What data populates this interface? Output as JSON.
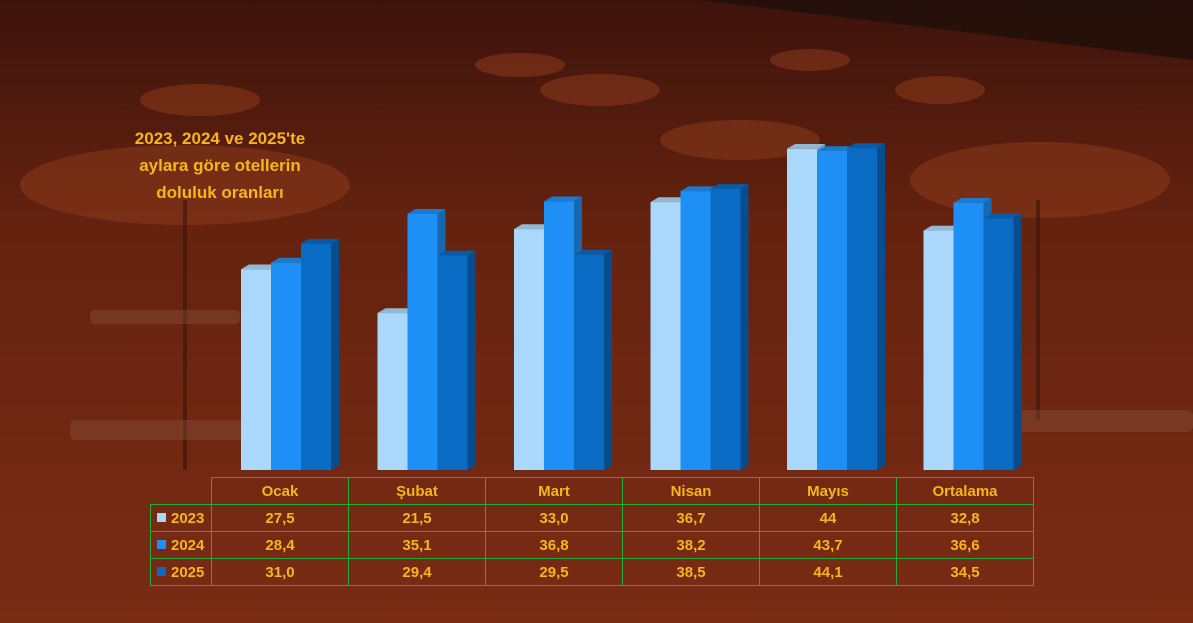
{
  "chart_data": {
    "type": "bar",
    "title": "2023, 2024 ve 2025'te\naylara göre otellerin\ndoluluk oranları",
    "categories": [
      "Ocak",
      "Şubat",
      "Mart",
      "Nisan",
      "Mayıs",
      "Ortalama"
    ],
    "series": [
      {
        "name": "2023",
        "color": "#aad8fb",
        "values": [
          "27,5",
          "21,5",
          "33,0",
          "36,7",
          "44",
          "32,8"
        ]
      },
      {
        "name": "2024",
        "color": "#1e90f5",
        "values": [
          "28,4",
          "35,1",
          "36,8",
          "38,2",
          "43,7",
          "36,6"
        ]
      },
      {
        "name": "2025",
        "color": "#0a6bc4",
        "values": [
          "31,0",
          "29,4",
          "29,5",
          "38,5",
          "44,1",
          "34,5"
        ]
      }
    ],
    "legend": "table-bottom",
    "grid": false
  }
}
